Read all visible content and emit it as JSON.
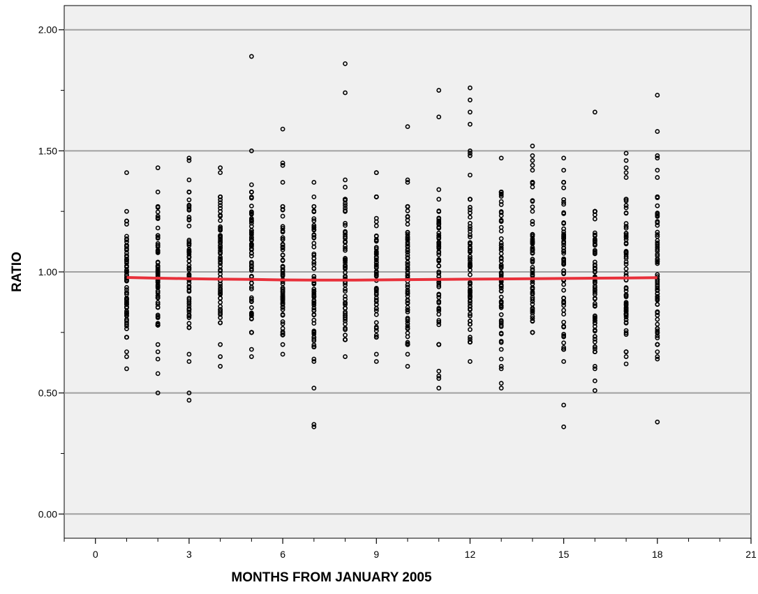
{
  "chart_data": {
    "type": "scatter",
    "xlabel": "MONTHS FROM JANUARY 2005",
    "ylabel": "RATIO",
    "xlim": [
      -1,
      21
    ],
    "ylim": [
      -0.1,
      2.1
    ],
    "x_major_ticks": [
      0,
      3,
      6,
      9,
      12,
      15,
      18,
      21
    ],
    "x_minor_ticks": [
      -1,
      1,
      2,
      4,
      5,
      7,
      8,
      10,
      11,
      13,
      14,
      16,
      17,
      19,
      20
    ],
    "y_ticks": [
      0,
      0.5,
      1.0,
      1.5,
      2.0
    ],
    "y_minor_ticks": [
      0.25,
      0.75,
      1.25,
      1.75
    ],
    "x_tick_labels": [
      "0",
      "3",
      "6",
      "9",
      "12",
      "15",
      "18",
      "21"
    ],
    "y_tick_labels": [
      "0.00",
      "0.50",
      "1.00",
      "1.50",
      "2.00"
    ],
    "grid": "horizontal",
    "background": "#f0f0f0",
    "marker_color": "#000000",
    "fit_line_color": "#e8303a",
    "months": [
      1,
      2,
      3,
      4,
      5,
      6,
      7,
      8,
      9,
      10,
      11,
      12,
      13,
      14,
      15,
      16,
      17,
      18
    ],
    "core_ranges": [
      [
        0.73,
        1.21
      ],
      [
        0.78,
        1.27
      ],
      [
        0.77,
        1.33
      ],
      [
        0.79,
        1.31
      ],
      [
        0.75,
        1.33
      ],
      [
        0.74,
        1.27
      ],
      [
        0.69,
        1.27
      ],
      [
        0.72,
        1.3
      ],
      [
        0.73,
        1.31
      ],
      [
        0.7,
        1.27
      ],
      [
        0.7,
        1.3
      ],
      [
        0.71,
        1.3
      ],
      [
        0.68,
        1.33
      ],
      [
        0.75,
        1.37
      ],
      [
        0.68,
        1.37
      ],
      [
        0.67,
        1.25
      ],
      [
        0.67,
        1.3
      ],
      [
        0.7,
        1.31
      ]
    ],
    "outliers": [
      [
        1,
        1.41
      ],
      [
        1,
        1.25
      ],
      [
        1,
        0.67
      ],
      [
        1,
        0.65
      ],
      [
        1,
        0.6
      ],
      [
        2,
        1.43
      ],
      [
        2,
        1.33
      ],
      [
        2,
        0.7
      ],
      [
        2,
        0.67
      ],
      [
        2,
        0.64
      ],
      [
        2,
        0.58
      ],
      [
        2,
        0.5
      ],
      [
        3,
        1.46
      ],
      [
        3,
        1.47
      ],
      [
        3,
        1.38
      ],
      [
        3,
        0.66
      ],
      [
        3,
        0.63
      ],
      [
        3,
        0.5
      ],
      [
        3,
        0.47
      ],
      [
        4,
        1.43
      ],
      [
        4,
        1.41
      ],
      [
        4,
        0.7
      ],
      [
        4,
        0.65
      ],
      [
        4,
        0.61
      ],
      [
        5,
        1.89
      ],
      [
        5,
        1.5
      ],
      [
        5,
        1.36
      ],
      [
        5,
        0.68
      ],
      [
        5,
        0.65
      ],
      [
        6,
        1.59
      ],
      [
        6,
        1.45
      ],
      [
        6,
        1.44
      ],
      [
        6,
        1.37
      ],
      [
        6,
        0.7
      ],
      [
        6,
        0.66
      ],
      [
        7,
        1.37
      ],
      [
        7,
        1.31
      ],
      [
        7,
        0.64
      ],
      [
        7,
        0.63
      ],
      [
        7,
        0.52
      ],
      [
        7,
        0.37
      ],
      [
        7,
        0.36
      ],
      [
        8,
        1.86
      ],
      [
        8,
        1.74
      ],
      [
        8,
        1.38
      ],
      [
        8,
        1.35
      ],
      [
        8,
        0.65
      ],
      [
        9,
        1.41
      ],
      [
        9,
        1.41
      ],
      [
        9,
        0.66
      ],
      [
        9,
        0.63
      ],
      [
        10,
        1.6
      ],
      [
        10,
        1.38
      ],
      [
        10,
        1.37
      ],
      [
        10,
        0.66
      ],
      [
        10,
        0.61
      ],
      [
        11,
        1.75
      ],
      [
        11,
        1.64
      ],
      [
        11,
        1.34
      ],
      [
        11,
        0.59
      ],
      [
        11,
        0.57
      ],
      [
        11,
        0.56
      ],
      [
        11,
        0.52
      ],
      [
        12,
        1.76
      ],
      [
        12,
        1.71
      ],
      [
        12,
        1.66
      ],
      [
        12,
        1.61
      ],
      [
        12,
        1.5
      ],
      [
        12,
        1.49
      ],
      [
        12,
        1.48
      ],
      [
        12,
        1.4
      ],
      [
        12,
        0.63
      ],
      [
        13,
        1.47
      ],
      [
        13,
        0.64
      ],
      [
        13,
        0.61
      ],
      [
        13,
        0.6
      ],
      [
        13,
        0.54
      ],
      [
        13,
        0.52
      ],
      [
        14,
        1.52
      ],
      [
        14,
        1.48
      ],
      [
        14,
        1.46
      ],
      [
        14,
        1.44
      ],
      [
        14,
        1.42
      ],
      [
        15,
        1.47
      ],
      [
        15,
        1.42
      ],
      [
        15,
        0.63
      ],
      [
        15,
        0.45
      ],
      [
        15,
        0.36
      ],
      [
        16,
        1.66
      ],
      [
        16,
        0.61
      ],
      [
        16,
        0.6
      ],
      [
        16,
        0.55
      ],
      [
        16,
        0.51
      ],
      [
        17,
        1.49
      ],
      [
        17,
        1.46
      ],
      [
        17,
        1.43
      ],
      [
        17,
        1.41
      ],
      [
        17,
        1.39
      ],
      [
        17,
        0.65
      ],
      [
        17,
        0.62
      ],
      [
        18,
        1.73
      ],
      [
        18,
        1.58
      ],
      [
        18,
        1.48
      ],
      [
        18,
        1.47
      ],
      [
        18,
        1.42
      ],
      [
        18,
        1.39
      ],
      [
        18,
        0.67
      ],
      [
        18,
        0.65
      ],
      [
        18,
        0.64
      ],
      [
        18,
        0.38
      ]
    ],
    "fit_line": {
      "x": [
        1,
        2,
        3,
        4,
        5,
        6,
        7,
        8,
        9,
        10,
        11,
        12,
        13,
        14,
        15,
        16,
        17,
        18
      ],
      "y": [
        0.977,
        0.974,
        0.972,
        0.97,
        0.969,
        0.967,
        0.966,
        0.966,
        0.967,
        0.968,
        0.969,
        0.97,
        0.971,
        0.972,
        0.973,
        0.974,
        0.975,
        0.976
      ]
    }
  }
}
